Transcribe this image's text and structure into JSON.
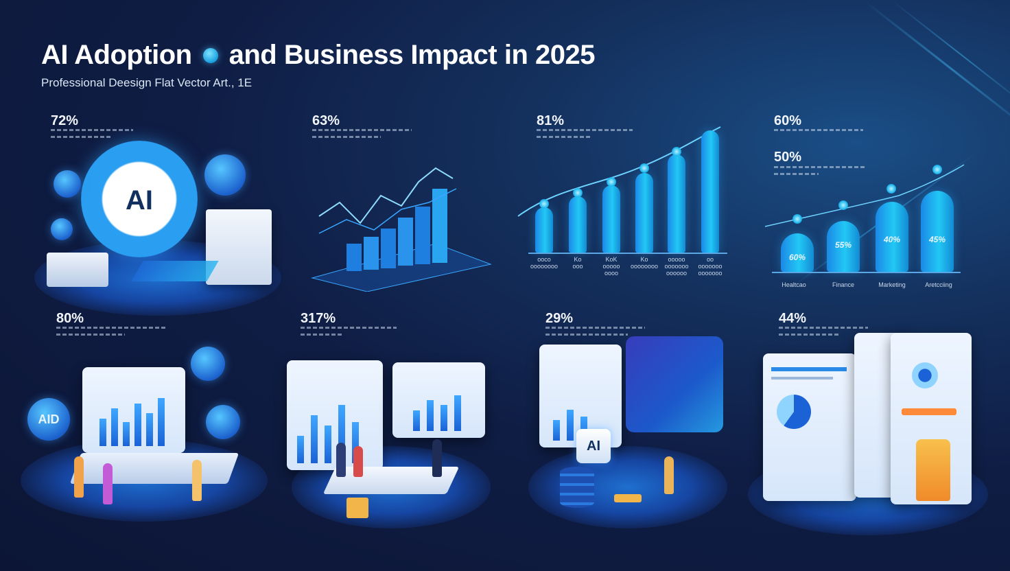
{
  "header": {
    "title_part1": "AI Adoption",
    "title_part2": "and Business Impact in 2025",
    "subtitle": "Professional Deesign Flat Vector Art., 1E"
  },
  "panels": [
    {
      "id": "p1",
      "stat": "72%"
    },
    {
      "id": "p2",
      "stat": "63%"
    },
    {
      "id": "p3",
      "stat": "81%",
      "bar_labels": [
        "ooco\noooooooo",
        "Ko\nooo",
        "KoK\nooooo\noooo",
        "Ko\noooooooo",
        "ooooo\nooooooo\noooooo",
        "oo\nooooooo\nooooooo"
      ]
    },
    {
      "id": "p4",
      "stat_top": "60%",
      "stat": "50%",
      "cyl_labels": [
        "60%",
        "55%",
        "40%",
        "45%"
      ],
      "categories": [
        "Healtcao",
        "Finance",
        "Marketing",
        "Aretcciing"
      ]
    },
    {
      "id": "p5",
      "stat": "80%",
      "screen_text": "AID"
    },
    {
      "id": "p6",
      "stat": "317%"
    },
    {
      "id": "p7",
      "stat": "29%",
      "screen_text": "AI"
    },
    {
      "id": "p8",
      "stat": "44%"
    }
  ],
  "hero": {
    "badge_text": "AI"
  },
  "colors": {
    "accent": "#22c8f5",
    "primary": "#1a62d6",
    "background": "#0f1d44"
  }
}
